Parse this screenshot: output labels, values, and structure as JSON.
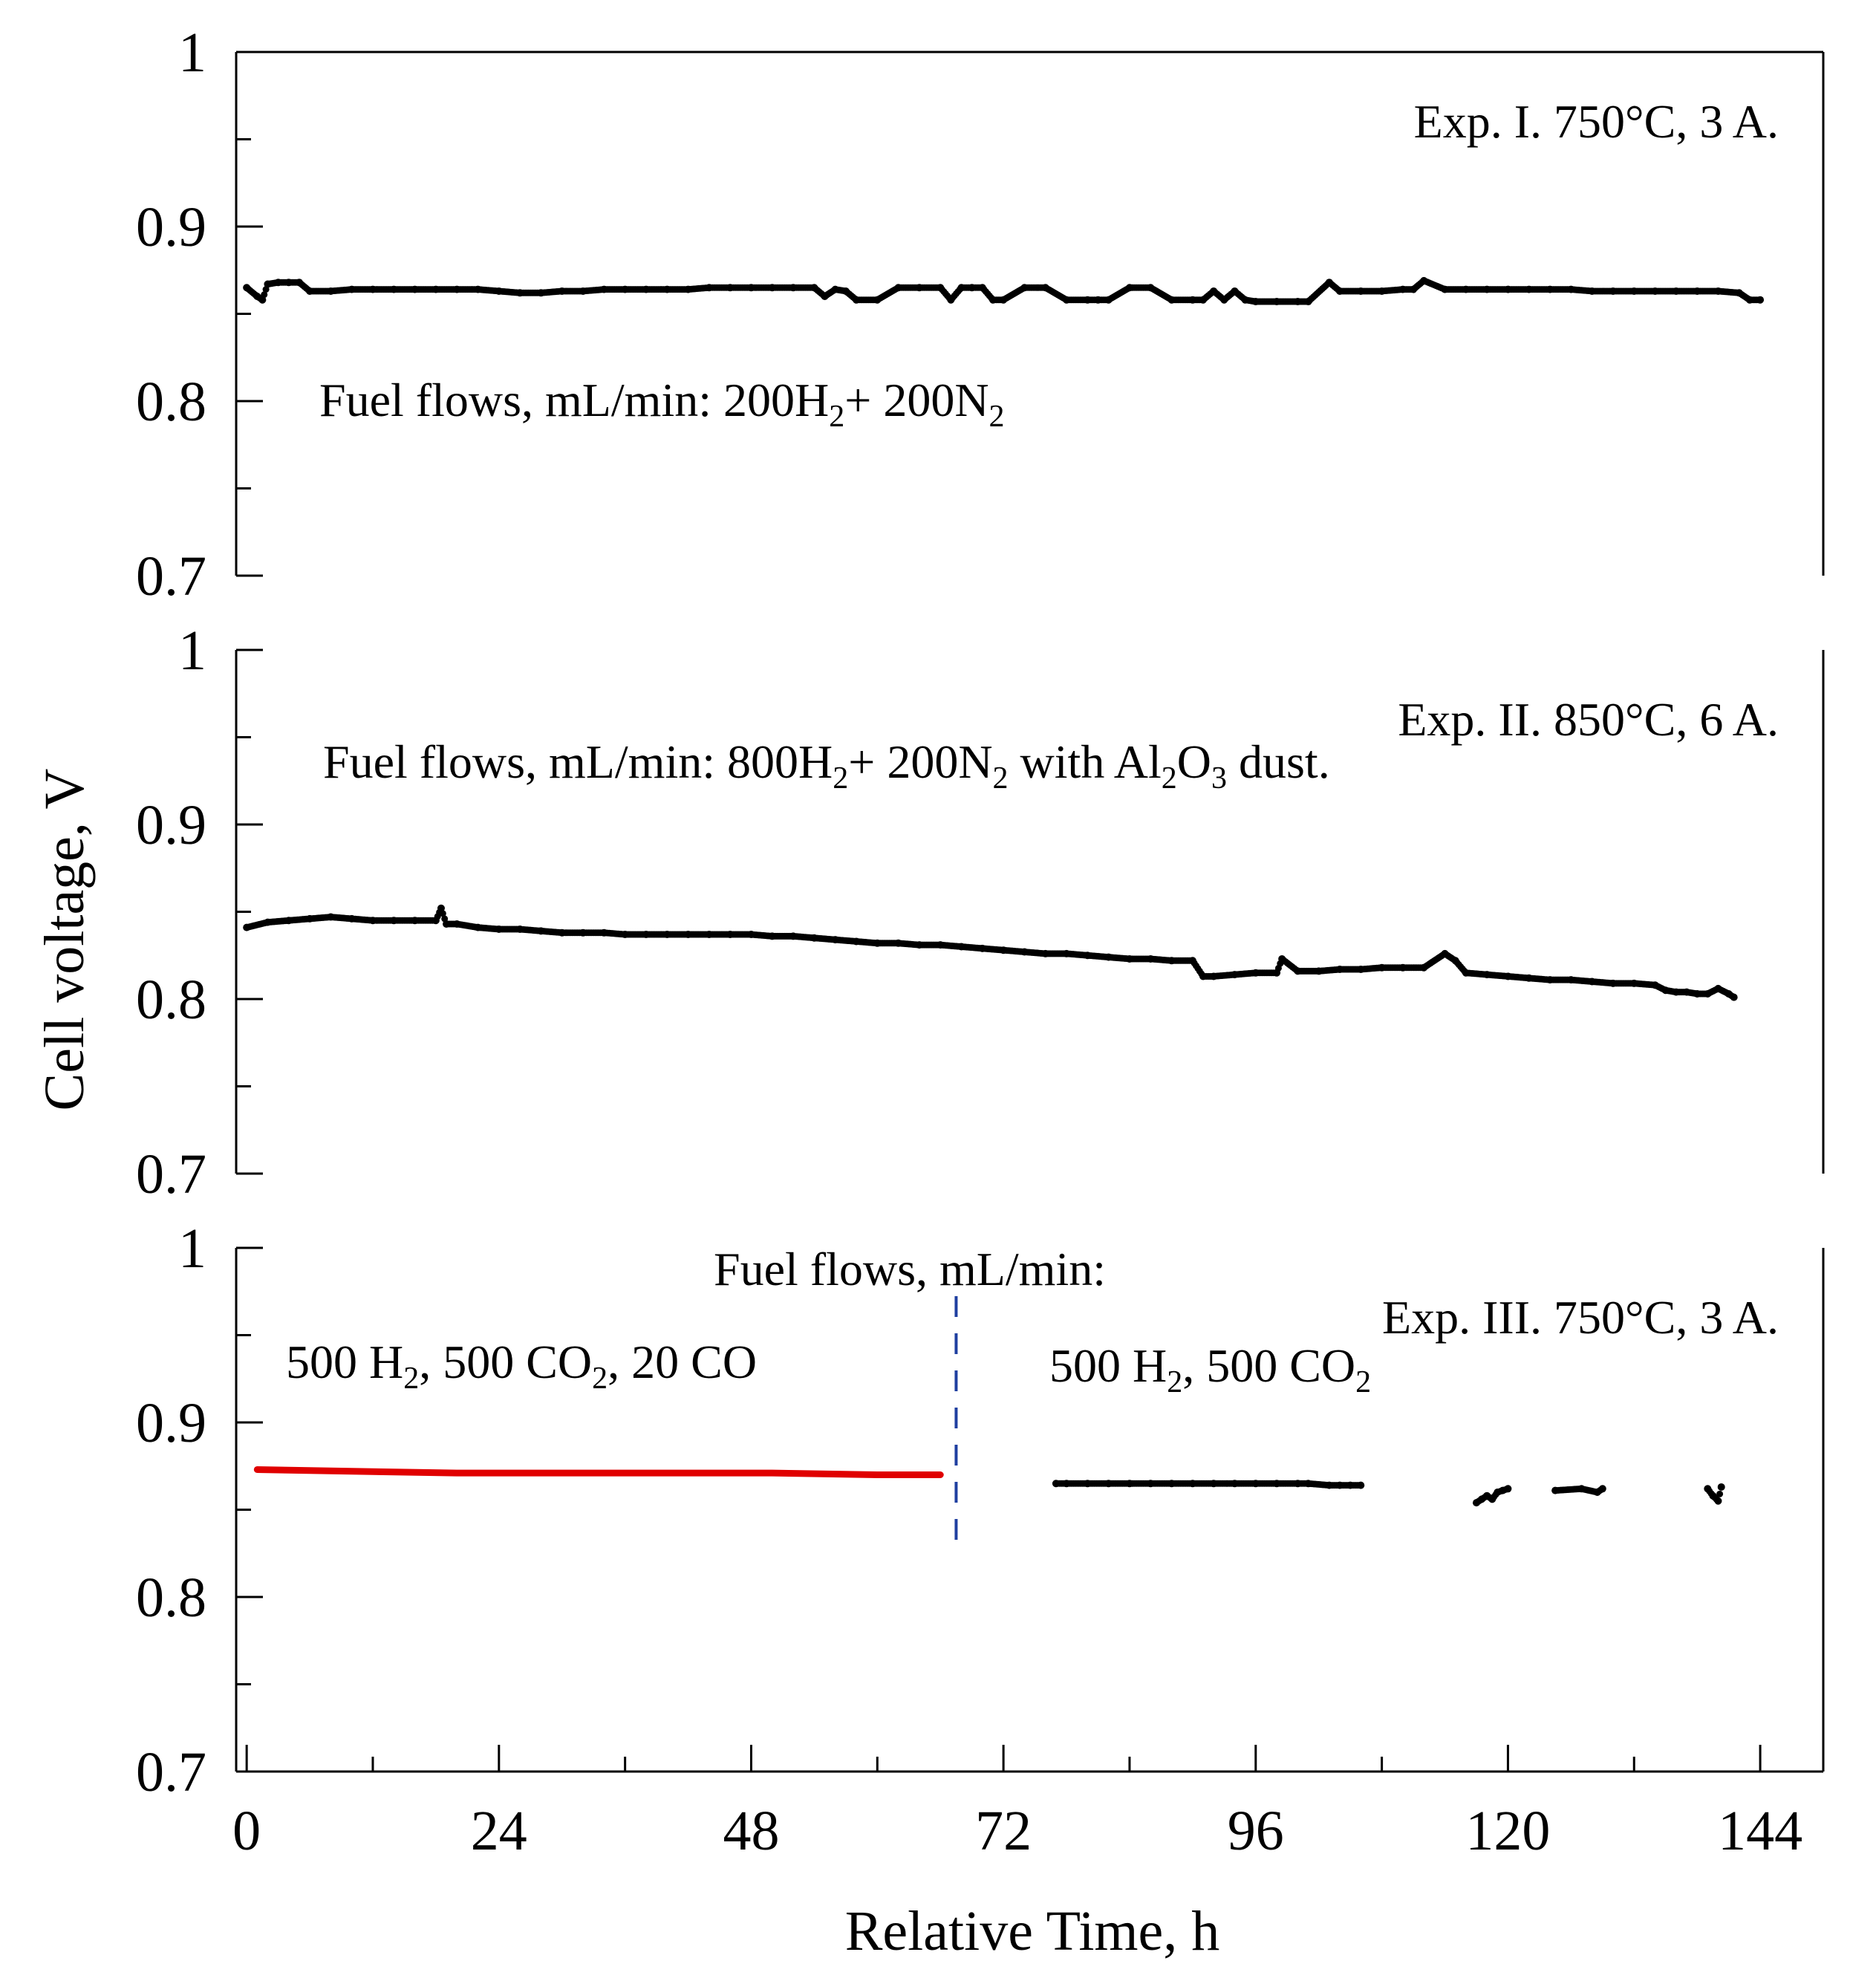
{
  "chart_data": {
    "type": "scatter",
    "xlabel": "Relative Time, h",
    "ylabel": "Cell voltage, V",
    "xlim": [
      -1,
      150
    ],
    "x_ticks": [
      "0",
      "24",
      "48",
      "72",
      "96",
      "120",
      "144"
    ],
    "x_tick_values": [
      0,
      24,
      48,
      72,
      96,
      120,
      144
    ],
    "y_ticks": [
      "0.7",
      "0.8",
      "0.9",
      "1"
    ],
    "y_tick_values": [
      0.7,
      0.8,
      0.9,
      1.0
    ],
    "panels": [
      {
        "title": "Exp. I. 750°C, 3 A.",
        "ylim": [
          0.7,
          1.0
        ],
        "annotation": {
          "text": "Fuel flows, mL/min: 200H",
          "sub1": "2",
          "mid": "+ 200N",
          "sub2": "2",
          "tail": ""
        },
        "series": [
          {
            "name": "Exp. I",
            "color": "#000000",
            "marker": "dot",
            "x": [
              0,
              1,
              1.5,
              2,
              3,
              4,
              5,
              6,
              8,
              10,
              12,
              14,
              16,
              18,
              20,
              22,
              24,
              26,
              28,
              30,
              32,
              34,
              36,
              38,
              40,
              42,
              44,
              46,
              48,
              50,
              52,
              54,
              55,
              56,
              57,
              58,
              60,
              62,
              64,
              66,
              67,
              68,
              69,
              70,
              71,
              72,
              74,
              76,
              78,
              80,
              81,
              82,
              84,
              86,
              88,
              90,
              91,
              92,
              93,
              94,
              95,
              96,
              98,
              100,
              101,
              103,
              104,
              106,
              108,
              110,
              111,
              112,
              114,
              116,
              118,
              120,
              122,
              124,
              126,
              128,
              130,
              132,
              134,
              136,
              138,
              140,
              142,
              143,
              144
            ],
            "y": [
              0.865,
              0.86,
              0.858,
              0.867,
              0.868,
              0.868,
              0.868,
              0.863,
              0.863,
              0.864,
              0.864,
              0.864,
              0.864,
              0.864,
              0.864,
              0.864,
              0.863,
              0.862,
              0.862,
              0.863,
              0.863,
              0.864,
              0.864,
              0.864,
              0.864,
              0.864,
              0.865,
              0.865,
              0.865,
              0.865,
              0.865,
              0.865,
              0.86,
              0.864,
              0.863,
              0.858,
              0.858,
              0.865,
              0.865,
              0.865,
              0.858,
              0.865,
              0.865,
              0.865,
              0.858,
              0.858,
              0.865,
              0.865,
              0.858,
              0.858,
              0.858,
              0.858,
              0.865,
              0.865,
              0.858,
              0.858,
              0.858,
              0.863,
              0.858,
              0.863,
              0.858,
              0.857,
              0.857,
              0.857,
              0.857,
              0.868,
              0.863,
              0.863,
              0.863,
              0.864,
              0.864,
              0.869,
              0.864,
              0.864,
              0.864,
              0.864,
              0.864,
              0.864,
              0.864,
              0.863,
              0.863,
              0.863,
              0.863,
              0.863,
              0.863,
              0.863,
              0.862,
              0.858,
              0.858
            ]
          }
        ]
      },
      {
        "title": "Exp. II. 850°C, 6 A.",
        "ylim": [
          0.7,
          1.0
        ],
        "annotation": {
          "text": "Fuel flows, mL/min: 800H",
          "sub1": "2",
          "mid": "+ 200N",
          "sub2": "2",
          "tail": " with  Al",
          "sub3": "2",
          "tail2": "O",
          "sub4": "3",
          "tail3": " dust."
        },
        "series": [
          {
            "name": "Exp. II",
            "color": "#000000",
            "marker": "dot",
            "x": [
              0,
              2,
              4,
              6,
              8,
              10,
              12,
              14,
              16,
              18,
              18.5,
              19,
              20,
              22,
              24,
              26,
              28,
              30,
              32,
              34,
              36,
              38,
              40,
              42,
              44,
              46,
              48,
              50,
              52,
              54,
              56,
              58,
              60,
              62,
              64,
              66,
              68,
              70,
              72,
              74,
              76,
              78,
              80,
              82,
              84,
              86,
              88,
              90,
              91,
              92,
              94,
              96,
              98,
              98.5,
              100,
              102,
              104,
              106,
              108,
              110,
              112,
              114,
              115,
              116,
              118,
              120,
              122,
              124,
              126,
              128,
              130,
              132,
              134,
              135,
              136,
              137,
              138,
              139,
              140,
              141,
              141.5
            ],
            "y": [
              0.841,
              0.844,
              0.845,
              0.846,
              0.847,
              0.846,
              0.845,
              0.845,
              0.845,
              0.845,
              0.852,
              0.843,
              0.843,
              0.841,
              0.84,
              0.84,
              0.839,
              0.838,
              0.838,
              0.838,
              0.837,
              0.837,
              0.837,
              0.837,
              0.837,
              0.837,
              0.837,
              0.836,
              0.836,
              0.835,
              0.834,
              0.833,
              0.832,
              0.832,
              0.831,
              0.831,
              0.83,
              0.829,
              0.828,
              0.827,
              0.826,
              0.826,
              0.825,
              0.824,
              0.823,
              0.823,
              0.822,
              0.822,
              0.813,
              0.813,
              0.814,
              0.815,
              0.815,
              0.823,
              0.816,
              0.816,
              0.817,
              0.817,
              0.818,
              0.818,
              0.818,
              0.826,
              0.822,
              0.815,
              0.814,
              0.813,
              0.812,
              0.811,
              0.811,
              0.81,
              0.809,
              0.809,
              0.808,
              0.805,
              0.804,
              0.804,
              0.803,
              0.803,
              0.806,
              0.803,
              0.801
            ]
          }
        ]
      },
      {
        "title": "Exp. III. 750°C, 3 A.",
        "ylim": [
          0.7,
          1.0
        ],
        "annotation": {
          "text": "Fuel flows, mL/min:"
        },
        "label_left": {
          "t1": "500 H",
          "s1": "2",
          "t2": ", 500 CO",
          "s2": "2",
          "t3": ", 20 CO"
        },
        "label_right": {
          "t1": "500 H",
          "s1": "2",
          "t2": ", 500 CO",
          "s2": "2"
        },
        "divider_x": 67.5,
        "series": [
          {
            "name": "500 H2, 500 CO2, 20 CO",
            "color": "#e00000",
            "marker": "line",
            "x": [
              1,
              10,
              20,
              30,
              40,
              50,
              60,
              66
            ],
            "y": [
              0.873,
              0.872,
              0.871,
              0.871,
              0.871,
              0.871,
              0.87,
              0.87
            ]
          },
          {
            "name": "500 H2, 500 CO2",
            "color": "#000000",
            "marker": "dot",
            "x": [
              77,
              78,
              80,
              82,
              84,
              86,
              88,
              90,
              92,
              94,
              96,
              98,
              100,
              101,
              103,
              104,
              105,
              106,
              117,
              117.5,
              118,
              118.5,
              119,
              119.5,
              120,
              124.5,
              127,
              128.5,
              129,
              139,
              139.5,
              140,
              140.3
            ],
            "y": [
              0.865,
              0.865,
              0.865,
              0.865,
              0.865,
              0.865,
              0.865,
              0.865,
              0.865,
              0.865,
              0.865,
              0.865,
              0.865,
              0.865,
              0.864,
              0.864,
              0.864,
              0.864,
              0.854,
              0.856,
              0.858,
              0.856,
              0.86,
              0.861,
              0.862,
              0.861,
              0.862,
              0.86,
              0.862,
              0.862,
              0.858,
              0.855,
              0.863
            ]
          }
        ]
      }
    ]
  }
}
